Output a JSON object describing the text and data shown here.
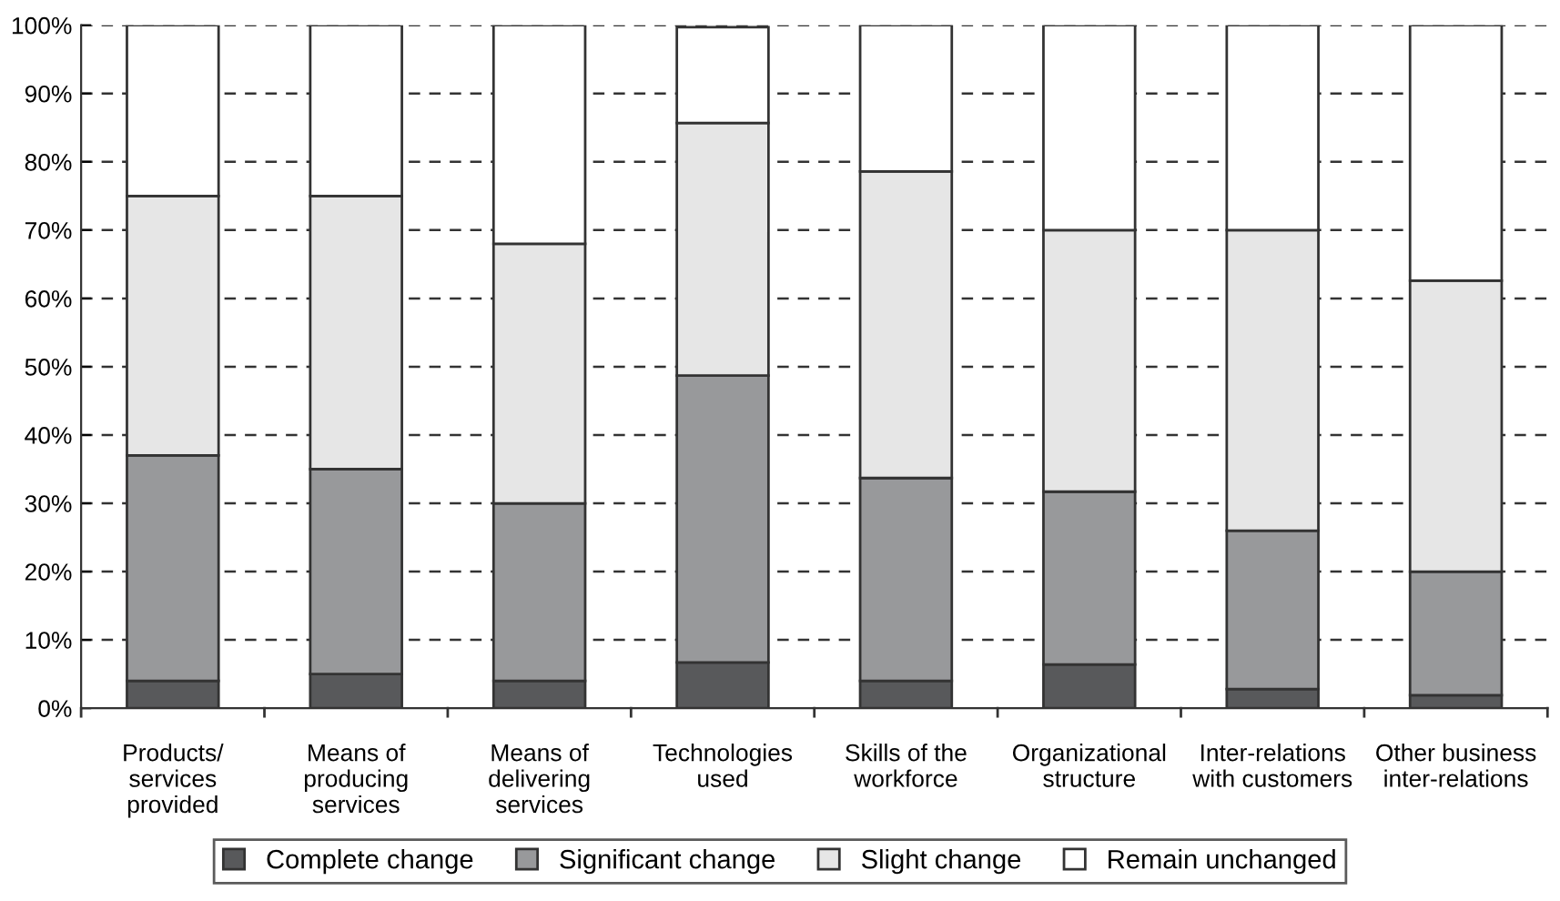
{
  "chart_data": {
    "type": "bar",
    "stacked": true,
    "categories": [
      "Products/\nservices\nprovided",
      "Means of\nproducing\nservices",
      "Means of\ndelivering\nservices",
      "Technologies\nused",
      "Skills of the\nworkforce",
      "Organizational\nstructure",
      "Inter-relations\nwith customers",
      "Other business\ninter-relations"
    ],
    "series": [
      {
        "name": "Complete change",
        "color": "#58595b",
        "values": [
          4,
          5,
          4,
          6.7,
          4,
          6.4,
          2.8,
          1.9
        ]
      },
      {
        "name": "Significant change",
        "color": "#98999b",
        "values": [
          33,
          30,
          26,
          42,
          29.7,
          25.3,
          23.2,
          18.1
        ]
      },
      {
        "name": "Slight change",
        "color": "#e6e6e6",
        "values": [
          38,
          40,
          38,
          37,
          44.9,
          38.3,
          44,
          42.6
        ]
      },
      {
        "name": "Remain unchanged",
        "color": "#ffffff",
        "values": [
          25,
          25,
          32,
          14,
          21.4,
          30,
          30,
          37.4
        ]
      }
    ],
    "ylim": [
      0,
      100
    ],
    "yticks": [
      {
        "value": 0,
        "label": "0%"
      },
      {
        "value": 10,
        "label": "10%"
      },
      {
        "value": 20,
        "label": "20%"
      },
      {
        "value": 30,
        "label": "30%"
      },
      {
        "value": 40,
        "label": "40%"
      },
      {
        "value": 50,
        "label": "50%"
      },
      {
        "value": 60,
        "label": "60%"
      },
      {
        "value": 70,
        "label": "70%"
      },
      {
        "value": 80,
        "label": "80%"
      },
      {
        "value": 90,
        "label": "90%"
      },
      {
        "value": 100,
        "label": "100%"
      }
    ],
    "grid": "y",
    "legend": "bottom"
  }
}
